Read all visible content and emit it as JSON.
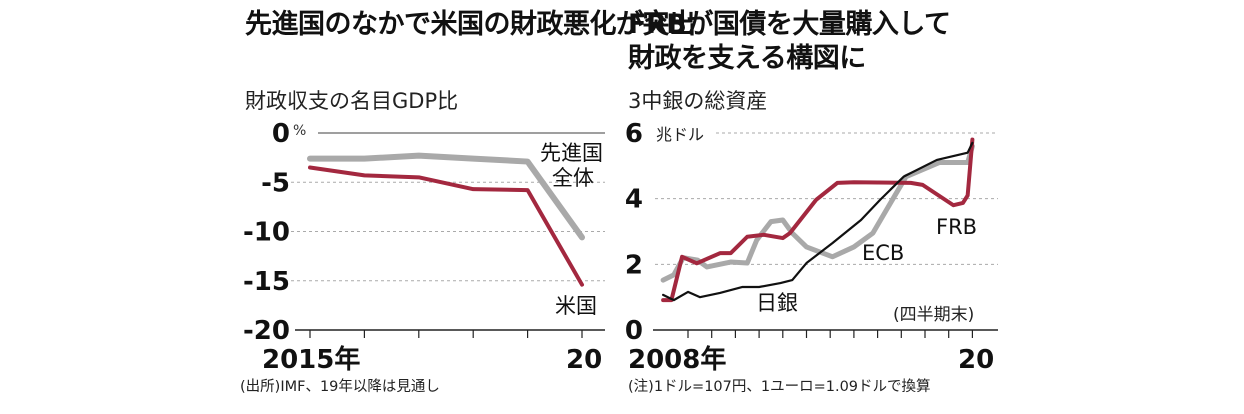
{
  "chart_data": [
    {
      "type": "line",
      "title": "先進国のなかで米国の財政悪化が突出",
      "subtitle": "財政収支の名目GDP比",
      "unit": "%",
      "ylim": [
        -20,
        0
      ],
      "yticks": [
        "0",
        "-5",
        "-10",
        "-15",
        "-20"
      ],
      "ytick_values": [
        0,
        -5,
        -10,
        -15,
        -20
      ],
      "x": [
        2015,
        2016,
        2017,
        2018,
        2019,
        2020
      ],
      "xtick_labels": [
        "2015年",
        "20"
      ],
      "series": [
        {
          "name": "先進国全体",
          "label_lines": [
            "先進国",
            "全体"
          ],
          "color": "#a9a9a9",
          "values": [
            -2.6,
            -2.6,
            -2.3,
            -2.6,
            -2.9,
            -10.6
          ]
        },
        {
          "name": "米国",
          "color": "#a3283f",
          "values": [
            -3.5,
            -4.3,
            -4.5,
            -5.7,
            -5.8,
            -15.4
          ]
        }
      ],
      "note": "(出所)IMF、19年以降は見通し",
      "grid": true
    },
    {
      "type": "line",
      "title": "FRBが国債を大量購入して財政を支える構図に",
      "title_lines": [
        "FRBが国債を大量購入して",
        "財政を支える構図に"
      ],
      "subtitle": "3中銀の総資産",
      "unit": "兆ドル",
      "ylim": [
        0,
        6
      ],
      "yticks": [
        "0",
        "2",
        "4",
        "6"
      ],
      "ytick_values": [
        0,
        2,
        4,
        6
      ],
      "xlim": [
        2007,
        2020.2
      ],
      "xtick_labels": [
        "2008年",
        "20"
      ],
      "period_note": "(四半期末)",
      "series": [
        {
          "name": "ECB",
          "color": "#a9a9a9",
          "x": [
            2006.95,
            2007.4,
            2007.8,
            2008.4,
            2008.8,
            2009.8,
            2010.5,
            2010.9,
            2011.5,
            2012,
            2012.4,
            2013,
            2014.1,
            2015,
            2015.8,
            2016.7,
            2017.2,
            2018.6,
            2019.8,
            2020
          ],
          "values": [
            1.52,
            1.68,
            2.2,
            2.13,
            1.92,
            2.07,
            2.04,
            2.74,
            3.3,
            3.35,
            2.95,
            2.53,
            2.23,
            2.53,
            2.95,
            4.06,
            4.67,
            5.1,
            5.1,
            5.6
          ]
        },
        {
          "name": "FRB",
          "color": "#a3283f",
          "x": [
            2006.95,
            2007.3,
            2007.75,
            2008.37,
            2009.35,
            2009.8,
            2010.5,
            2011.2,
            2012,
            2012.3,
            2013.4,
            2014.3,
            2015,
            2017.4,
            2017.9,
            2019.2,
            2019.6,
            2019.8,
            2020
          ],
          "values": [
            0.91,
            0.91,
            2.23,
            2.03,
            2.34,
            2.34,
            2.84,
            2.9,
            2.8,
            2.95,
            3.96,
            4.48,
            4.5,
            4.48,
            4.42,
            3.8,
            3.87,
            4.1,
            5.8
          ]
        },
        {
          "name": "日銀",
          "color": "#111111",
          "x": [
            2006.95,
            2007.4,
            2008,
            2008.5,
            2009.35,
            2010.3,
            2011,
            2011.9,
            2012.4,
            2013,
            2014.1,
            2015.3,
            2016.1,
            2017.1,
            2018.5,
            2019.8,
            2020
          ],
          "values": [
            1.07,
            0.91,
            1.16,
            1.0,
            1.13,
            1.31,
            1.31,
            1.43,
            1.52,
            2.04,
            2.65,
            3.35,
            3.96,
            4.67,
            5.18,
            5.4,
            5.7
          ]
        }
      ],
      "note": "(注)1ドル=107円、1ユーロ=1.09ドルで換算",
      "grid": true
    }
  ]
}
